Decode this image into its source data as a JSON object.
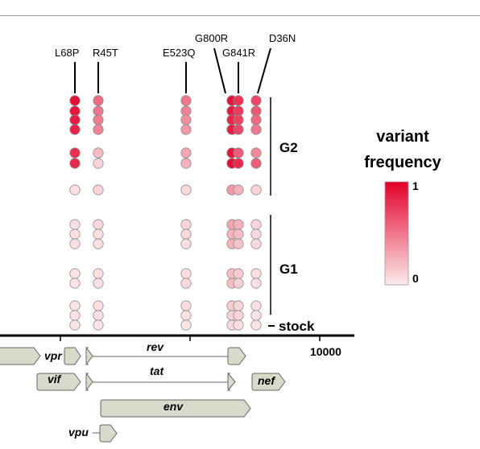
{
  "mutations": [
    {
      "label": "L68P",
      "frequencies": [
        0.95,
        0.9,
        0.88,
        0.85,
        0.8,
        0.82,
        0.05,
        0.05,
        0.06,
        0.05,
        0.04,
        0.04,
        0.03,
        0.03,
        0.03
      ]
    },
    {
      "label": "R45T",
      "frequencies": [
        0.55,
        0.5,
        0.48,
        0.45,
        0.2,
        0.1,
        0.1,
        0.08,
        0.06,
        0.06,
        0.06,
        0.05,
        0.06,
        0.05,
        0.04
      ]
    },
    {
      "label": "E523Q",
      "frequencies": [
        0.5,
        0.45,
        0.4,
        0.35,
        0.3,
        0.25,
        0.08,
        0.1,
        0.08,
        0.06,
        0.06,
        0.08,
        0.06,
        0.05,
        0.04
      ]
    },
    {
      "label": "G800R",
      "frequencies": [
        0.92,
        0.9,
        0.85,
        0.88,
        0.92,
        0.95,
        0.35,
        0.3,
        0.25,
        0.25,
        0.2,
        0.2,
        0.15,
        0.12,
        0.08
      ]
    },
    {
      "label": "G841R",
      "frequencies": [
        0.78,
        0.75,
        0.72,
        0.7,
        0.6,
        0.82,
        0.25,
        0.25,
        0.2,
        0.18,
        0.15,
        0.12,
        0.1,
        0.1,
        0.06
      ]
    },
    {
      "label": "D36N",
      "frequencies": [
        0.7,
        0.62,
        0.55,
        0.5,
        0.42,
        0.6,
        0.1,
        0.1,
        0.08,
        0.08,
        0.06,
        0.05,
        0.05,
        0.04,
        0.04
      ]
    }
  ],
  "groups": {
    "g2": "G2",
    "g1": "G1",
    "stock": "stock"
  },
  "legend": {
    "title_line1": "variant",
    "title_line2": "frequency",
    "max_label": "1",
    "min_label": "0",
    "color_low": "#fbecec",
    "color_high": "#e4002b"
  },
  "axis": {
    "tick_label": "10000"
  },
  "genes": [
    {
      "name": "vpr"
    },
    {
      "name": "rev"
    },
    {
      "name": "vif"
    },
    {
      "name": "tat"
    },
    {
      "name": "nef"
    },
    {
      "name": "env"
    },
    {
      "name": "vpu"
    }
  ],
  "colors": {
    "gene_fill": "#d9d9cc",
    "gene_stroke": "#666666",
    "circle_stroke": "#8c8c8c"
  }
}
